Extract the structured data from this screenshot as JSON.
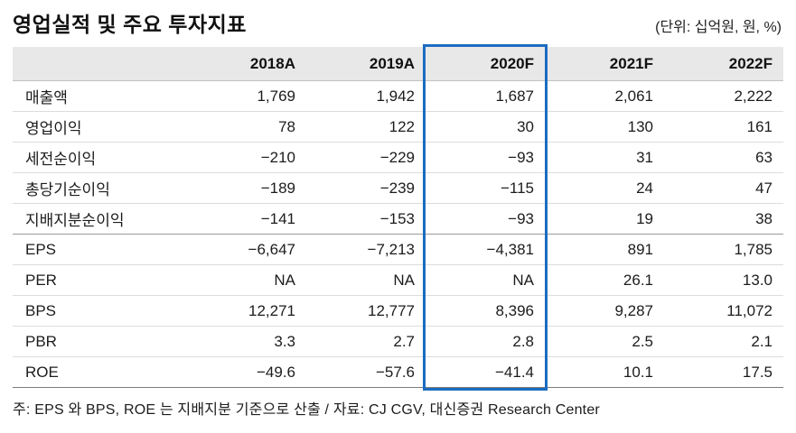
{
  "title": "영업실적 및 주요 투자지표",
  "unit_note": "(단위: 십억원, 원, %)",
  "table": {
    "columns": [
      "",
      "2018A",
      "2019A",
      "2020F",
      "2021F",
      "2022F"
    ],
    "highlight_column": "2020F",
    "rows": [
      {
        "label": "매출액",
        "values": [
          "1,769",
          "1,942",
          "1,687",
          "2,061",
          "2,222"
        ]
      },
      {
        "label": "영업이익",
        "values": [
          "78",
          "122",
          "30",
          "130",
          "161"
        ]
      },
      {
        "label": "세전순이익",
        "values": [
          "−210",
          "−229",
          "−93",
          "31",
          "63"
        ]
      },
      {
        "label": "총당기순이익",
        "values": [
          "−189",
          "−239",
          "−115",
          "24",
          "47"
        ]
      },
      {
        "label": "지배지분순이익",
        "values": [
          "−141",
          "−153",
          "−93",
          "19",
          "38"
        ],
        "group_end": true
      },
      {
        "label": "EPS",
        "values": [
          "−6,647",
          "−7,213",
          "−4,381",
          "891",
          "1,785"
        ]
      },
      {
        "label": "PER",
        "values": [
          "NA",
          "NA",
          "NA",
          "26.1",
          "13.0"
        ]
      },
      {
        "label": "BPS",
        "values": [
          "12,271",
          "12,777",
          "8,396",
          "9,287",
          "11,072"
        ]
      },
      {
        "label": "PBR",
        "values": [
          "3.3",
          "2.7",
          "2.8",
          "2.5",
          "2.1"
        ]
      },
      {
        "label": "ROE",
        "values": [
          "−49.6",
          "−57.6",
          "−41.4",
          "10.1",
          "17.5"
        ]
      }
    ]
  },
  "footnote": "주: EPS 와 BPS, ROE 는 지배지분 기준으로 산출 / 자료: CJ CGV, 대신증권 Research Center",
  "colors": {
    "highlight_border": "#1b6cc0",
    "header_bg": "#e8e8e8"
  }
}
